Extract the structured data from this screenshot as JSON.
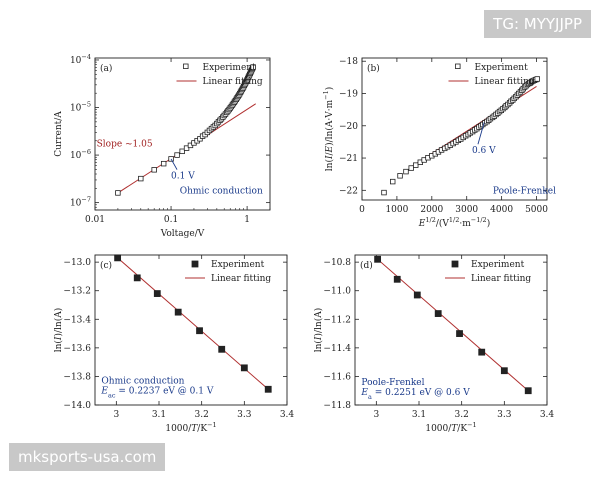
{
  "watermarks": {
    "top": "TG: MYYJJPP",
    "bottom": "mksports-usa.com"
  },
  "colors": {
    "marker": "#222222",
    "fit": "#b03030",
    "slope_text": "#a02020",
    "note": "#1a3a8a",
    "axis": "#222222"
  },
  "chart_data": [
    {
      "panel": "(a)",
      "type": "scatter",
      "xlabel": "Voltage/V",
      "ylabel": "Current/A",
      "xscale": "log",
      "yscale": "log",
      "xlim": [
        0.01,
        2.0
      ],
      "ylim": [
        7e-08,
        0.00011
      ],
      "xticks": [
        0.01,
        0.1,
        1
      ],
      "xtick_labels": [
        "0.01",
        "0.1",
        "1"
      ],
      "yticks": [
        1e-07,
        1e-06,
        1e-05,
        0.0001
      ],
      "ytick_labels": [
        [
          "10",
          "−7"
        ],
        [
          "10",
          "−6"
        ],
        [
          "10",
          "−5"
        ],
        [
          "10",
          "−4"
        ]
      ],
      "marker": "open-square",
      "legend_position": "top-right",
      "legend": [
        "Experiment",
        "Linear fitting"
      ],
      "series": [
        {
          "x": [
            0.02,
            0.04,
            0.06,
            0.08,
            0.1,
            0.12,
            0.14,
            0.16,
            0.18,
            0.2,
            0.22,
            0.24,
            0.26,
            0.28,
            0.3,
            0.32,
            0.34,
            0.36,
            0.38,
            0.4,
            0.42,
            0.44,
            0.46,
            0.48,
            0.5,
            0.52,
            0.54,
            0.56,
            0.58,
            0.6,
            0.62,
            0.64,
            0.66,
            0.68,
            0.7,
            0.72,
            0.74,
            0.76,
            0.78,
            0.8,
            0.82,
            0.84,
            0.86,
            0.88,
            0.9,
            0.92,
            0.94,
            0.96,
            0.98,
            1.0,
            1.02,
            1.04,
            1.06,
            1.08,
            1.1,
            1.12,
            1.14,
            1.16,
            1.18,
            1.2
          ],
          "y": [
            1.6e-07,
            3.2e-07,
            4.9e-07,
            6.6e-07,
            8.3e-07,
            1e-06,
            1.2e-06,
            1.4e-06,
            1.6e-06,
            1.8e-06,
            2e-06,
            2.2e-06,
            2.5e-06,
            2.7e-06,
            3e-06,
            3.3e-06,
            3.6e-06,
            3.9e-06,
            4.2e-06,
            4.6e-06,
            5e-06,
            5.4e-06,
            5.8e-06,
            6.3e-06,
            6.8e-06,
            7.3e-06,
            7.9e-06,
            8.5e-06,
            9.1e-06,
            9.8e-06,
            1.05e-05,
            1.13e-05,
            1.21e-05,
            1.3e-05,
            1.39e-05,
            1.49e-05,
            1.6e-05,
            1.71e-05,
            1.83e-05,
            1.96e-05,
            2.1e-05,
            2.24e-05,
            2.4e-05,
            2.56e-05,
            2.74e-05,
            2.93e-05,
            3.13e-05,
            3.34e-05,
            3.57e-05,
            3.81e-05,
            4.07e-05,
            4.34e-05,
            4.63e-05,
            4.93e-05,
            5.25e-05,
            5.59e-05,
            5.95e-05,
            6.33e-05,
            6.72e-05,
            7.1e-05
          ]
        }
      ],
      "fit": {
        "x": [
          0.02,
          1.3
        ],
        "y": [
          1.6e-07,
          1.2e-05
        ]
      },
      "annotations": [
        {
          "text": "Slope ~1.05",
          "x": 0.0105,
          "y": 1.5e-06,
          "color": "slope_text"
        },
        {
          "text": "0.1 V",
          "x": 0.1,
          "y": 3.2e-07,
          "color": "note",
          "arrow_to": [
            0.1,
            8.3e-07
          ]
        },
        {
          "text": "Ohmic conduction",
          "x": 0.13,
          "y": 1.55e-07,
          "color": "note"
        }
      ]
    },
    {
      "panel": "(b)",
      "type": "scatter",
      "xlabel_parts": [
        [
          "E",
          "i"
        ],
        [
          "1/2",
          "sup"
        ],
        [
          "/(V",
          ""
        ],
        [
          "1/2",
          "sup"
        ],
        [
          "·m",
          ""
        ],
        [
          "−1/2",
          "sup"
        ],
        [
          ")",
          ""
        ]
      ],
      "ylabel_parts": [
        [
          "ln(",
          ""
        ],
        [
          "I",
          "i"
        ],
        [
          "/",
          ""
        ],
        [
          "E",
          "i"
        ],
        [
          ")/ln(A·V·m",
          ""
        ],
        [
          "−1",
          "sup"
        ],
        [
          ")",
          ""
        ]
      ],
      "xlim": [
        0,
        5300
      ],
      "ylim": [
        -22.3,
        -17.9
      ],
      "xticks": [
        0,
        1000,
        2000,
        3000,
        4000,
        5000
      ],
      "yticks": [
        -22,
        -21,
        -20,
        -19,
        -18
      ],
      "ytick_labels": [
        "−22",
        "−21",
        "−20",
        "−19",
        "−18"
      ],
      "marker": "open-square",
      "legend_position": "top-right",
      "legend": [
        "Experiment",
        "Linear fitting"
      ],
      "series": [
        {
          "x": [
            630,
            880,
            1090,
            1260,
            1410,
            1540,
            1670,
            1780,
            1890,
            2000,
            2100,
            2190,
            2280,
            2370,
            2450,
            2530,
            2610,
            2690,
            2760,
            2830,
            2900,
            2970,
            3040,
            3100,
            3170,
            3230,
            3290,
            3350,
            3410,
            3460,
            3520,
            3580,
            3630,
            3680,
            3740,
            3790,
            3840,
            3890,
            3940,
            3990,
            4040,
            4090,
            4130,
            4180,
            4230,
            4270,
            4320,
            4360,
            4410,
            4450,
            4490,
            4540,
            4580,
            4620,
            4660,
            4700,
            4740,
            4780,
            4820,
            4860,
            4900,
            4940,
            4980,
            5020
          ],
          "y": [
            -22.07,
            -21.73,
            -21.55,
            -21.42,
            -21.31,
            -21.22,
            -21.13,
            -21.06,
            -20.99,
            -20.93,
            -20.87,
            -20.81,
            -20.75,
            -20.7,
            -20.65,
            -20.6,
            -20.55,
            -20.5,
            -20.45,
            -20.41,
            -20.36,
            -20.31,
            -20.27,
            -20.22,
            -20.18,
            -20.13,
            -20.09,
            -20.04,
            -20.0,
            -19.96,
            -19.91,
            -19.87,
            -19.83,
            -19.78,
            -19.74,
            -19.7,
            -19.65,
            -19.61,
            -19.56,
            -19.52,
            -19.47,
            -19.43,
            -19.38,
            -19.34,
            -19.29,
            -19.24,
            -19.2,
            -19.15,
            -19.1,
            -19.05,
            -19.0,
            -18.95,
            -18.9,
            -18.85,
            -18.8,
            -18.76,
            -18.72,
            -18.69,
            -18.66,
            -18.63,
            -18.61,
            -18.59,
            -18.57,
            -18.55
          ]
        }
      ],
      "fit": {
        "x": [
          1400,
          5000
        ],
        "y": [
          -21.28,
          -18.78
        ]
      },
      "annotations": [
        {
          "text": "0.6 V",
          "x": 3150,
          "y": -20.85,
          "color": "note",
          "arrow_to": [
            3500,
            -19.9
          ]
        },
        {
          "text": "Poole-Frenkel",
          "x": 3750,
          "y": -22.1,
          "color": "note"
        }
      ]
    },
    {
      "panel": "(c)",
      "type": "scatter",
      "xlabel_parts": [
        [
          "1000/",
          ""
        ],
        [
          "T",
          "i"
        ],
        [
          "/K",
          ""
        ],
        [
          "−1",
          "sup"
        ]
      ],
      "ylabel_parts": [
        [
          "ln(",
          ""
        ],
        [
          "I",
          "i"
        ],
        [
          ")/ln(A)",
          ""
        ]
      ],
      "xlim": [
        2.95,
        3.4
      ],
      "ylim": [
        -14.0,
        -12.95
      ],
      "xticks": [
        3.0,
        3.1,
        3.2,
        3.3,
        3.4
      ],
      "yticks": [
        -13.0,
        -13.2,
        -13.4,
        -13.6,
        -13.8,
        -14.0
      ],
      "ytick_labels": [
        "−13.0",
        "−13.2",
        "−13.4",
        "−13.6",
        "−13.8",
        "−14.0"
      ],
      "marker": "filled-square",
      "legend_position": "top-right",
      "legend": [
        "Experiment",
        "Linear fitting"
      ],
      "series": [
        {
          "x": [
            3.003,
            3.049,
            3.096,
            3.145,
            3.195,
            3.247,
            3.3,
            3.356
          ],
          "y": [
            -12.97,
            -13.11,
            -13.22,
            -13.35,
            -13.48,
            -13.61,
            -13.74,
            -13.89
          ]
        }
      ],
      "fit": {
        "x": [
          3.003,
          3.356
        ],
        "y": [
          -12.97,
          -13.89
        ]
      },
      "annotations": [
        {
          "text": "Ohmic conduction",
          "x": 2.965,
          "y": -13.85,
          "color": "note"
        },
        {
          "parts": [
            [
              "E",
              "i"
            ],
            [
              "ac",
              "sub"
            ],
            [
              " = 0.2237 eV @ 0.1 V",
              ""
            ]
          ],
          "x": 2.965,
          "y": -13.92,
          "color": "note"
        }
      ]
    },
    {
      "panel": "(d)",
      "type": "scatter",
      "xlabel_parts": [
        [
          "1000/",
          ""
        ],
        [
          "T",
          "i"
        ],
        [
          "/K",
          ""
        ],
        [
          "−1",
          "sup"
        ]
      ],
      "ylabel_parts": [
        [
          "ln(",
          ""
        ],
        [
          "I",
          "i"
        ],
        [
          ")/ln(A)",
          ""
        ]
      ],
      "xlim": [
        2.95,
        3.4
      ],
      "ylim": [
        -11.8,
        -10.75
      ],
      "xticks": [
        3.0,
        3.1,
        3.2,
        3.3,
        3.4
      ],
      "yticks": [
        -10.8,
        -11.0,
        -11.2,
        -11.4,
        -11.6,
        -11.8
      ],
      "ytick_labels": [
        "−10.8",
        "−11.0",
        "−11.2",
        "−11.4",
        "−11.6",
        "−11.8"
      ],
      "marker": "filled-square",
      "legend_position": "top-right",
      "legend": [
        "Experiment",
        "Linear fitting"
      ],
      "series": [
        {
          "x": [
            3.003,
            3.049,
            3.096,
            3.145,
            3.195,
            3.247,
            3.3,
            3.356
          ],
          "y": [
            -10.78,
            -10.92,
            -11.03,
            -11.16,
            -11.3,
            -11.43,
            -11.56,
            -11.7
          ]
        }
      ],
      "fit": {
        "x": [
          3.003,
          3.356
        ],
        "y": [
          -10.78,
          -11.7
        ]
      },
      "annotations": [
        {
          "text": "Poole-Frenkel",
          "x": 2.965,
          "y": -11.66,
          "color": "note"
        },
        {
          "parts": [
            [
              "E",
              "i"
            ],
            [
              "a",
              "sub"
            ],
            [
              " = 0.2251 eV @ 0.6 V",
              ""
            ]
          ],
          "x": 2.965,
          "y": -11.73,
          "color": "note"
        }
      ]
    }
  ]
}
